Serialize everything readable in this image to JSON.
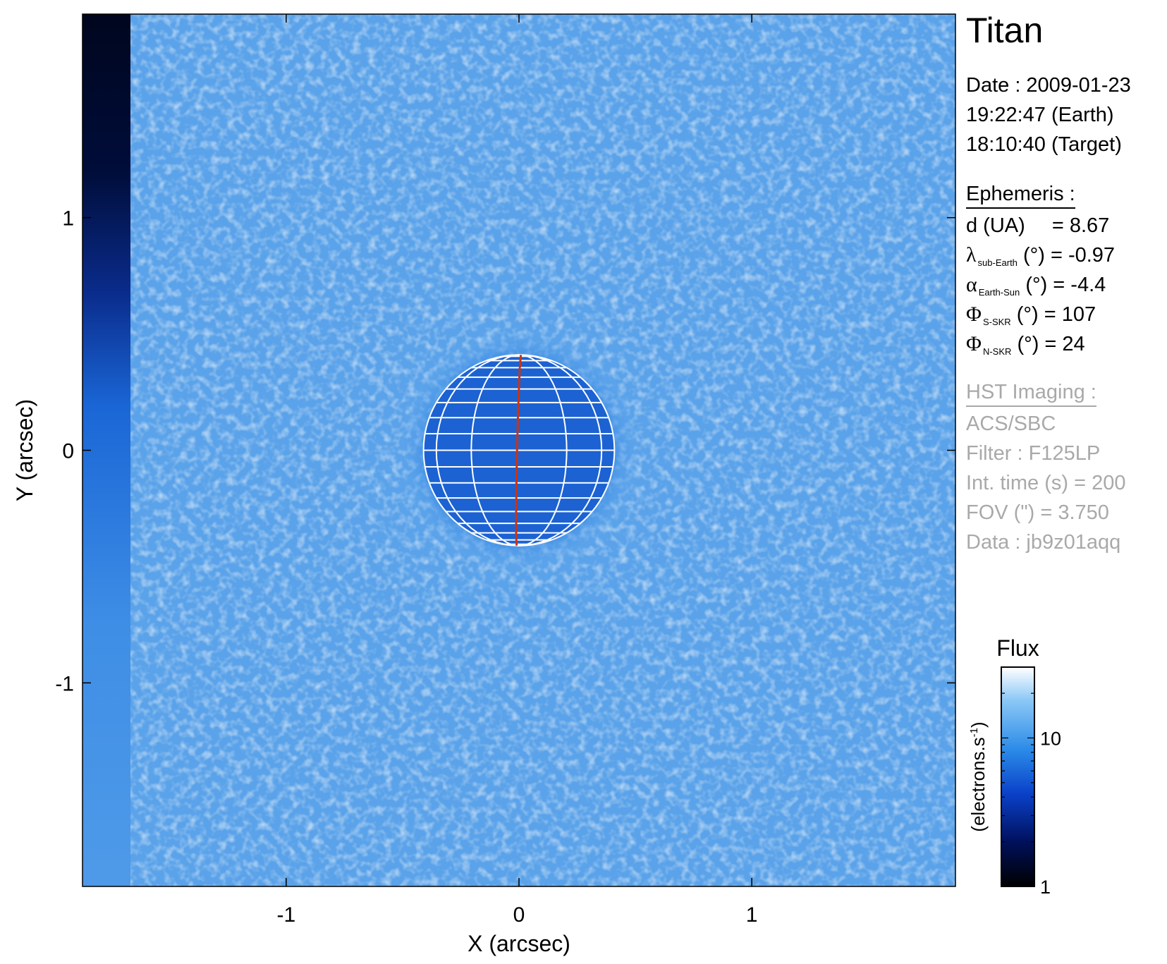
{
  "chart_data": {
    "type": "heatmap",
    "xlabel": "X (arcsec)",
    "ylabel": "Y (arcsec)",
    "xlim": [
      -1.875,
      1.875
    ],
    "ylim": [
      -1.875,
      1.875
    ],
    "xticks": [
      -1,
      0,
      1
    ],
    "yticks": [
      -1,
      0,
      1
    ],
    "target_disk": {
      "center_x": 0,
      "center_y": 0,
      "radius_arcsec": 0.41,
      "meridian_color": "#cc3311",
      "grid_color": "#ffffff"
    },
    "colorbar": {
      "label": "Flux",
      "unit_label": "(electrons.s",
      "unit_exponent": "-1",
      "unit_close": ")",
      "scale": "log",
      "range": [
        1,
        30
      ],
      "ticks": [
        1,
        10
      ],
      "colors": [
        "#000000",
        "#00105a",
        "#0a40c8",
        "#2a8ae8",
        "#8cc8f6",
        "#ffffff"
      ]
    }
  },
  "info": {
    "title": "Titan",
    "date_line": "Date : 2009-01-23",
    "earth_time": "19:22:47 (Earth)",
    "target_time": "18:10:40 (Target)",
    "ephemeris_heading": "Ephemeris :",
    "d_label": "d (UA)",
    "d_value": "= 8.67",
    "lambda_sym": "λ",
    "lambda_sub": "sub-Earth",
    "lambda_value": "(°) = -0.97",
    "alpha_sym": "α",
    "alpha_sub": "Earth-Sun",
    "alpha_value": "(°) = -4.4",
    "phi_sym": "Φ",
    "phi_s_sub": "S-SKR",
    "phi_s_value": "(°)   = 107",
    "phi_n_sub": "N-SKR",
    "phi_n_value": "(°)   = 24",
    "hst_heading": "HST Imaging :",
    "instrument": "ACS/SBC",
    "filter": "Filter : F125LP",
    "int_time": "Int. time (s) = 200",
    "fov": "FOV (\") = 3.750",
    "data_id": "Data : jb9z01aqq"
  }
}
